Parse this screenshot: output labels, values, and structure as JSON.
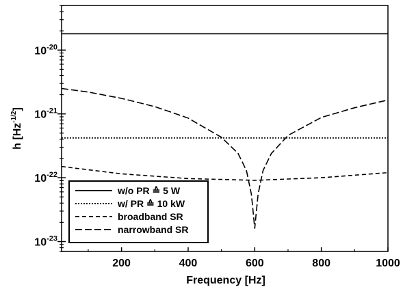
{
  "chart_data": {
    "type": "line",
    "title": "",
    "xlabel": "Frequency [Hz]",
    "ylabel": "h [Hz",
    "ylabel_sup": "-1/2",
    "ylabel_end": "]",
    "xscale": "linear",
    "yscale": "log",
    "xlim": [
      20,
      1000
    ],
    "ylim": [
      7e-24,
      5e-20
    ],
    "grid": false,
    "legend_position": "bottom-left",
    "x_ticks": [
      {
        "value": 200,
        "label": "200"
      },
      {
        "value": 400,
        "label": "400"
      },
      {
        "value": 600,
        "label": "600"
      },
      {
        "value": 800,
        "label": "800"
      },
      {
        "value": 1000,
        "label": "1000"
      }
    ],
    "y_ticks": [
      {
        "value": 1e-20,
        "base": "10",
        "exp": "-20"
      },
      {
        "value": 1e-21,
        "base": "10",
        "exp": "-21"
      },
      {
        "value": 1e-22,
        "base": "10",
        "exp": "-22"
      },
      {
        "value": 1e-23,
        "base": "10",
        "exp": "-23"
      }
    ],
    "series": [
      {
        "name": "w/o PR ≙ 5 W",
        "style": "solid",
        "x": [
          20,
          1000
        ],
        "y": [
          1.8e-20,
          1.8e-20
        ]
      },
      {
        "name": "w/ PR ≙ 10 kW",
        "style": "dotted",
        "x": [
          20,
          1000
        ],
        "y": [
          4.2e-22,
          4.2e-22
        ]
      },
      {
        "name": "broadband SR",
        "style": "dashed",
        "x": [
          20,
          200,
          400,
          600,
          800,
          1000
        ],
        "y": [
          1.5e-22,
          1.15e-22,
          9.7e-23,
          9.1e-23,
          1e-22,
          1.2e-22
        ]
      },
      {
        "name": "narrowband SR",
        "style": "longdash",
        "x": [
          20,
          100,
          200,
          300,
          400,
          500,
          550,
          575,
          590,
          600,
          610,
          625,
          650,
          700,
          800,
          900,
          1000
        ],
        "y": [
          2.5e-21,
          2.2e-21,
          1.75e-21,
          1.3e-21,
          8.6e-22,
          4.3e-22,
          2.4e-22,
          1.3e-22,
          5.5e-23,
          1.6e-23,
          5.5e-23,
          1.3e-22,
          2.4e-22,
          4.6e-22,
          8.8e-22,
          1.25e-21,
          1.65e-21
        ]
      }
    ]
  },
  "colors": {
    "axis": "#000000",
    "line": "#000000",
    "background": "#ffffff"
  }
}
